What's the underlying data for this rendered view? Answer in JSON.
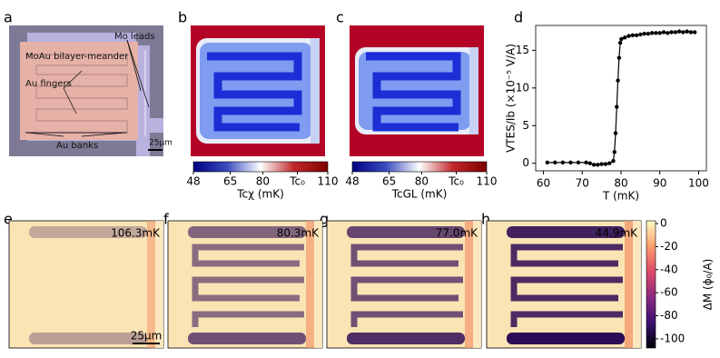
{
  "panel_labels": [
    "a",
    "b",
    "c",
    "d",
    "e",
    "f",
    "g",
    "h"
  ],
  "micrograph": {
    "labels": [
      "Mo leads",
      "MoAu bilayer-meander",
      "Au fingers",
      "Au banks"
    ],
    "scalebar": "25μm"
  },
  "maps": {
    "temperatures": [
      "106.3mK",
      "80.3mK",
      "77.0mK",
      "44.9mK"
    ],
    "scalebar": "25μm"
  },
  "chart_data": [
    {
      "type": "line",
      "xlabel": "T (mK)",
      "ylabel": "VTES/Ib (×10⁻⁵ V/A)",
      "color": "#000000",
      "x": [
        61,
        63,
        65,
        67,
        69,
        71,
        72,
        73,
        74,
        75,
        76,
        77,
        78,
        78.3,
        78.6,
        78.9,
        79.2,
        79.5,
        79.8,
        80.1,
        81,
        82,
        83,
        84,
        85,
        86,
        87,
        88,
        89,
        90,
        91,
        92,
        93,
        94,
        95,
        96,
        97,
        98,
        99
      ],
      "values": [
        0.1,
        0.1,
        0.1,
        0.1,
        0.1,
        0.1,
        0,
        -0.2,
        -0.2,
        -0.1,
        -0.1,
        0,
        0.3,
        1.5,
        4,
        7.5,
        11,
        14,
        16,
        16.5,
        16.7,
        16.9,
        17,
        17,
        17.1,
        17.2,
        17.2,
        17.3,
        17.3,
        17.3,
        17.4,
        17.3,
        17.4,
        17.4,
        17.5,
        17.4,
        17.5,
        17.4,
        17.4
      ],
      "xlim": [
        58,
        102
      ],
      "xticks": [
        60,
        70,
        80,
        90,
        100
      ],
      "ylim": [
        -1,
        18.3
      ],
      "yticks": [
        0,
        5,
        10,
        15
      ]
    },
    {
      "type": "colorbar",
      "xlabel": "Tcχ (mK)",
      "colors": [
        "#00007f",
        "#3b4cc0",
        "#ffffff",
        "#c0282c",
        "#7f0000"
      ],
      "xlim": [
        48,
        110
      ],
      "xticks": [
        48,
        65,
        80,
        {
          "value": 96,
          "label": "Tc₀"
        },
        110
      ]
    },
    {
      "type": "colorbar",
      "xlabel": "TcGL (mK)",
      "colors": [
        "#00007f",
        "#3b4cc0",
        "#ffffff",
        "#c0282c",
        "#7f0000"
      ],
      "xlim": [
        48,
        110
      ],
      "xticks": [
        48,
        65,
        80,
        {
          "value": 96,
          "label": "Tc₀"
        },
        110
      ]
    },
    {
      "type": "colorbar",
      "ylabel": "ΔM (ϕ₀/A)",
      "colors": [
        "#000004",
        "#3b0f70",
        "#8c2981",
        "#de4968",
        "#fe9f6d",
        "#fcfdbf"
      ],
      "ylim": [
        -108,
        2.4
      ],
      "yticks": [
        0,
        -20,
        -40,
        -60,
        -80,
        -100
      ]
    }
  ]
}
